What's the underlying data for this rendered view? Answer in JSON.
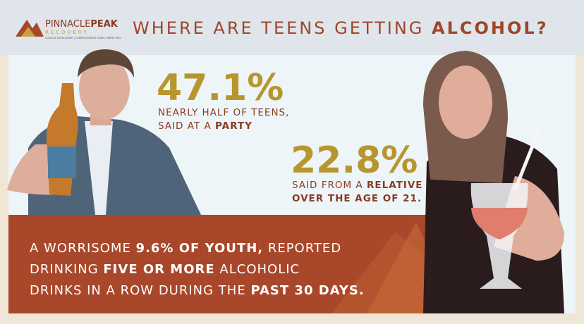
{
  "header": {
    "logo": {
      "name_light": "PINNACLE",
      "name_bold": "PEAK",
      "sub": "RECOVERY",
      "tagline": "CLINICAL EXCELLENCE | COMPASSIONATE CARE | FAMILY FEEL"
    },
    "title": [
      {
        "text": "WHERE ARE TEENS GETTING ",
        "bold": false
      },
      {
        "text": "ALCOHOL?",
        "bold": true
      }
    ]
  },
  "stats": [
    {
      "figure": "47.1%",
      "lines": [
        [
          {
            "text": "NEARLY HALF OF TEENS,",
            "bold": false
          }
        ],
        [
          {
            "text": "SAID AT A ",
            "bold": false
          },
          {
            "text": "PARTY",
            "bold": true
          }
        ]
      ]
    },
    {
      "figure": "22.8%",
      "lines": [
        [
          {
            "text": "SAID FROM A ",
            "bold": false
          },
          {
            "text": "RELATIVE",
            "bold": true
          }
        ],
        [
          {
            "text": "OVER THE AGE OF 21.",
            "bold": true
          }
        ]
      ]
    }
  ],
  "callout": {
    "lines": [
      [
        {
          "text": "A WORRISOME ",
          "bold": false
        },
        {
          "text": "9.6% OF YOUTH,",
          "bold": true
        },
        {
          "text": " REPORTED",
          "bold": false
        }
      ],
      [
        {
          "text": "DRINKING ",
          "bold": false
        },
        {
          "text": "FIVE OR MORE",
          "bold": true
        },
        {
          "text": " ALCOHOLIC",
          "bold": false
        }
      ],
      [
        {
          "text": "DRINKS IN A ROW DURING THE ",
          "bold": false
        },
        {
          "text": "PAST 30 DAYS.",
          "bold": true
        }
      ]
    ]
  }
}
